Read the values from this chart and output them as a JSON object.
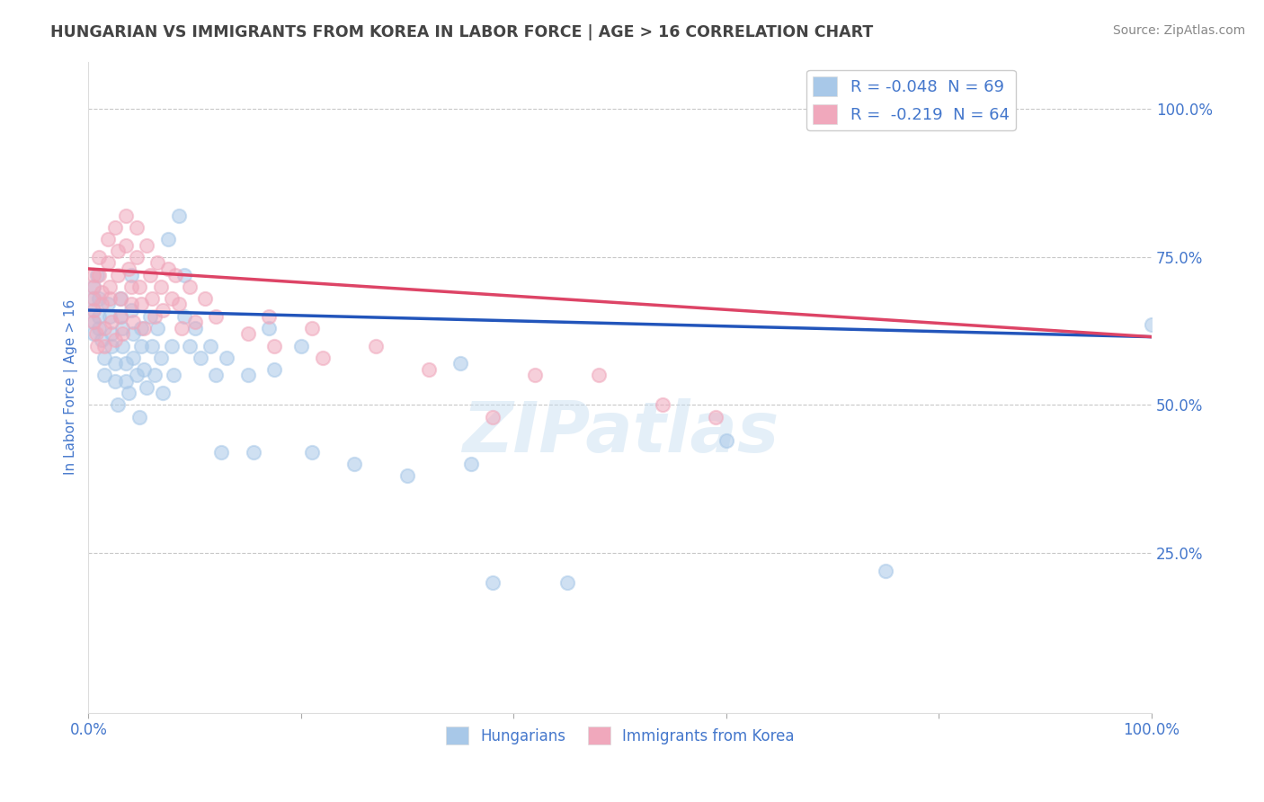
{
  "title": "HUNGARIAN VS IMMIGRANTS FROM KOREA IN LABOR FORCE | AGE > 16 CORRELATION CHART",
  "source": "Source: ZipAtlas.com",
  "ylabel": "In Labor Force | Age > 16",
  "xlim": [
    0.0,
    1.0
  ],
  "ylim": [
    -0.02,
    1.08
  ],
  "background_color": "#ffffff",
  "grid_color": "#c8c8c8",
  "watermark": "ZIPatlas",
  "legend_entries": [
    {
      "label": "R = -0.048  N = 69"
    },
    {
      "label": "R =  -0.219  N = 64"
    }
  ],
  "blue_scatter_color": "#a8c8e8",
  "pink_scatter_color": "#f0a8bc",
  "blue_line_color": "#2255bb",
  "pink_line_color": "#dd4466",
  "legend_labels_bottom": [
    "Hungarians",
    "Immigrants from Korea"
  ],
  "blue_points": [
    [
      0.005,
      0.68
    ],
    [
      0.005,
      0.7
    ],
    [
      0.005,
      0.66
    ],
    [
      0.005,
      0.64
    ],
    [
      0.005,
      0.62
    ],
    [
      0.008,
      0.72
    ],
    [
      0.01,
      0.65
    ],
    [
      0.01,
      0.68
    ],
    [
      0.01,
      0.63
    ],
    [
      0.012,
      0.61
    ],
    [
      0.015,
      0.58
    ],
    [
      0.015,
      0.55
    ],
    [
      0.018,
      0.67
    ],
    [
      0.02,
      0.65
    ],
    [
      0.022,
      0.62
    ],
    [
      0.022,
      0.6
    ],
    [
      0.025,
      0.57
    ],
    [
      0.025,
      0.54
    ],
    [
      0.028,
      0.5
    ],
    [
      0.03,
      0.68
    ],
    [
      0.03,
      0.65
    ],
    [
      0.032,
      0.63
    ],
    [
      0.032,
      0.6
    ],
    [
      0.035,
      0.57
    ],
    [
      0.035,
      0.54
    ],
    [
      0.038,
      0.52
    ],
    [
      0.04,
      0.72
    ],
    [
      0.04,
      0.66
    ],
    [
      0.042,
      0.62
    ],
    [
      0.042,
      0.58
    ],
    [
      0.045,
      0.55
    ],
    [
      0.048,
      0.48
    ],
    [
      0.05,
      0.63
    ],
    [
      0.05,
      0.6
    ],
    [
      0.052,
      0.56
    ],
    [
      0.055,
      0.53
    ],
    [
      0.058,
      0.65
    ],
    [
      0.06,
      0.6
    ],
    [
      0.062,
      0.55
    ],
    [
      0.065,
      0.63
    ],
    [
      0.068,
      0.58
    ],
    [
      0.07,
      0.52
    ],
    [
      0.075,
      0.78
    ],
    [
      0.078,
      0.6
    ],
    [
      0.08,
      0.55
    ],
    [
      0.085,
      0.82
    ],
    [
      0.09,
      0.72
    ],
    [
      0.09,
      0.65
    ],
    [
      0.095,
      0.6
    ],
    [
      0.1,
      0.63
    ],
    [
      0.105,
      0.58
    ],
    [
      0.115,
      0.6
    ],
    [
      0.12,
      0.55
    ],
    [
      0.125,
      0.42
    ],
    [
      0.13,
      0.58
    ],
    [
      0.15,
      0.55
    ],
    [
      0.155,
      0.42
    ],
    [
      0.17,
      0.63
    ],
    [
      0.175,
      0.56
    ],
    [
      0.2,
      0.6
    ],
    [
      0.21,
      0.42
    ],
    [
      0.25,
      0.4
    ],
    [
      0.3,
      0.38
    ],
    [
      0.35,
      0.57
    ],
    [
      0.36,
      0.4
    ],
    [
      0.38,
      0.2
    ],
    [
      0.45,
      0.2
    ],
    [
      0.6,
      0.44
    ],
    [
      0.75,
      0.22
    ],
    [
      1.0,
      0.635
    ]
  ],
  "pink_points": [
    [
      0.005,
      0.72
    ],
    [
      0.005,
      0.7
    ],
    [
      0.005,
      0.68
    ],
    [
      0.005,
      0.66
    ],
    [
      0.005,
      0.64
    ],
    [
      0.007,
      0.62
    ],
    [
      0.008,
      0.6
    ],
    [
      0.01,
      0.75
    ],
    [
      0.01,
      0.72
    ],
    [
      0.012,
      0.69
    ],
    [
      0.012,
      0.67
    ],
    [
      0.015,
      0.63
    ],
    [
      0.015,
      0.6
    ],
    [
      0.018,
      0.78
    ],
    [
      0.018,
      0.74
    ],
    [
      0.02,
      0.7
    ],
    [
      0.02,
      0.68
    ],
    [
      0.022,
      0.64
    ],
    [
      0.025,
      0.61
    ],
    [
      0.025,
      0.8
    ],
    [
      0.028,
      0.76
    ],
    [
      0.028,
      0.72
    ],
    [
      0.03,
      0.68
    ],
    [
      0.03,
      0.65
    ],
    [
      0.032,
      0.62
    ],
    [
      0.035,
      0.82
    ],
    [
      0.035,
      0.77
    ],
    [
      0.038,
      0.73
    ],
    [
      0.04,
      0.7
    ],
    [
      0.04,
      0.67
    ],
    [
      0.042,
      0.64
    ],
    [
      0.045,
      0.8
    ],
    [
      0.045,
      0.75
    ],
    [
      0.048,
      0.7
    ],
    [
      0.05,
      0.67
    ],
    [
      0.052,
      0.63
    ],
    [
      0.055,
      0.77
    ],
    [
      0.058,
      0.72
    ],
    [
      0.06,
      0.68
    ],
    [
      0.062,
      0.65
    ],
    [
      0.065,
      0.74
    ],
    [
      0.068,
      0.7
    ],
    [
      0.07,
      0.66
    ],
    [
      0.075,
      0.73
    ],
    [
      0.078,
      0.68
    ],
    [
      0.082,
      0.72
    ],
    [
      0.085,
      0.67
    ],
    [
      0.088,
      0.63
    ],
    [
      0.095,
      0.7
    ],
    [
      0.1,
      0.64
    ],
    [
      0.11,
      0.68
    ],
    [
      0.12,
      0.65
    ],
    [
      0.15,
      0.62
    ],
    [
      0.17,
      0.65
    ],
    [
      0.175,
      0.6
    ],
    [
      0.21,
      0.63
    ],
    [
      0.22,
      0.58
    ],
    [
      0.27,
      0.6
    ],
    [
      0.32,
      0.56
    ],
    [
      0.38,
      0.48
    ],
    [
      0.42,
      0.55
    ],
    [
      0.48,
      0.55
    ],
    [
      0.54,
      0.5
    ],
    [
      0.59,
      0.48
    ]
  ],
  "blue_line_x": [
    0.0,
    1.0
  ],
  "blue_line_y": [
    0.66,
    0.615
  ],
  "pink_line_x": [
    0.0,
    1.0
  ],
  "pink_line_y": [
    0.73,
    0.615
  ],
  "title_color": "#444444",
  "axis_label_color": "#4477cc",
  "tick_label_color": "#4477cc",
  "source_color": "#888888",
  "legend_blue_color": "#a8c8e8",
  "legend_pink_color": "#f0a8bc",
  "legend_text_color": "#4477cc"
}
